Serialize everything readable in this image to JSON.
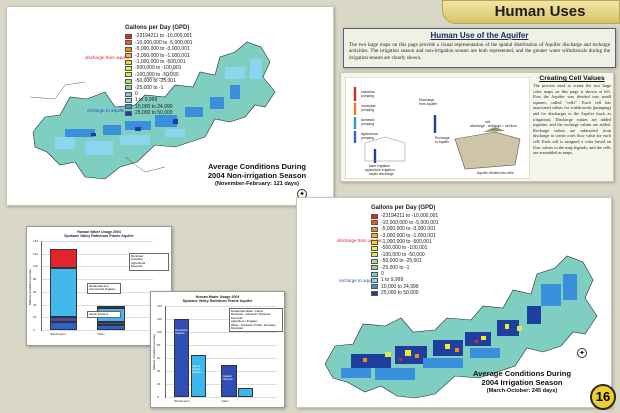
{
  "header": {
    "tab_title": "Human Uses"
  },
  "page_number": "16",
  "legend": {
    "title": "Gallons per Day (GPD)",
    "items": [
      {
        "label": "-23194211 to -10,000,001",
        "color": "#e8231e"
      },
      {
        "label": "-10,000,000 to -5,000,001",
        "color": "#f05a1e"
      },
      {
        "label": "-5,000,000 to -3,000,001",
        "color": "#f48a1c"
      },
      {
        "label": "-3,000,000 to -1,000,001",
        "color": "#f7b21c"
      },
      {
        "label": "-1,000,000 to -500,001",
        "color": "#f8d41e"
      },
      {
        "label": "-500,000 to -100,001",
        "color": "#f5ec2a"
      },
      {
        "label": "-100,000 to -50,000",
        "color": "#d6ec4e"
      },
      {
        "label": "-50,000 to -25,001",
        "color": "#aee06a"
      },
      {
        "label": "-25,000 to -1",
        "color": "#8ed3a6"
      },
      {
        "label": "0",
        "color": "#7ecfc2"
      },
      {
        "label": "1 to 9,999",
        "color": "#8ad6ee"
      },
      {
        "label": "10,000 to 24,999",
        "color": "#3a8fdc"
      },
      {
        "label": "25,000 to 50,000",
        "color": "#1e3f9e"
      }
    ],
    "discharge_label": "discharge from aquifer",
    "recharge_label": "recharge to aquifer"
  },
  "map_nonirrigation": {
    "caption_line1": "Average Conditions During",
    "caption_line2": "2004 Non-irrigation Season",
    "caption_line3": "(November-February: 121 days)"
  },
  "map_irrigation": {
    "caption_line1": "Average Conditions During",
    "caption_line2": "2004 Irrigation Season",
    "caption_line3": "(March-October: 245 days)"
  },
  "intro": {
    "heading": "Human Use of the Aquifer",
    "text": "The two large maps on this page provide a visual representation of the spatial distribution of Aquifer discharge and recharge activities. The irrigation season and non-irrigation season are both represented, and the greater water withdrawals during the irrigation season are clearly shown."
  },
  "cells": {
    "heading": "Creating Cell Values",
    "text": "The process used to create the two large color maps on this page is shown at left. First the Aquifer was divided into small squares, called \"cells\". Each cell has associated values for withdrawals (pumping) and for discharges to the Aquifer (such as irrigation). Discharge values are added together, and the recharge values are added. Recharge values are subtracted from discharge to create a net flow value for each cell. Each cell is assigned a color based on flow values in the map legends, and the cells are assembled as maps."
  },
  "diagram": {
    "labels": [
      "industrial pumping",
      "municipal pumping",
      "domestic pumping",
      "agricultural pumping",
      "Discharge from Aquifer",
      "Recharge to Aquifer",
      "lawn irrigation",
      "agriculture irrigation",
      "septic discharge",
      "cell",
      "cell",
      "discharge - recharge = net flow",
      "Aquifer divided into cells"
    ]
  },
  "chart1": {
    "title_line1": "Human Water Usage 2004",
    "title_line2": "Spokane Valley Rathdrum Prairie Aquifer",
    "categories": [
      "Washington",
      "Idaho"
    ],
    "ylabel": "Millions of Gallons per Day",
    "yticks": [
      "0",
      "20",
      "40",
      "60",
      "80",
      "100",
      "120",
      "140"
    ],
    "legend": [
      "Municipal",
      "Industrial",
      "Agricultural",
      "Domestic"
    ],
    "notes": [
      "Residential and Commercial Irrigation",
      "Septic Systems"
    ]
  },
  "chart2": {
    "title_line1": "Human Water Usage 2004",
    "title_line2": "Spokane Valley Rathdrum Prairie Aquifer",
    "categories": [
      "Washington",
      "Idaho"
    ],
    "ylabel": "Millions of Gallons per Day",
    "yticks": [
      "0",
      "20",
      "40",
      "60",
      "80",
      "100",
      "120",
      "140"
    ],
    "legend": [
      "Residential Water / Indoor",
      "Municipal - Industrial / Business, Domestic",
      "Agriculture / Irrigation",
      "Water - Industrial / Public, Domestic, Municipal"
    ],
    "bar_labels": [
      "Residential Irrigation",
      "Lawn & Garden / Irrigation",
      "Irrigation Industrial",
      "Domestic"
    ]
  },
  "chart_data": [
    {
      "type": "bar",
      "stacked": true,
      "title": "Human Water Usage 2004 Spokane Valley Rathdrum Prairie Aquifer",
      "categories": [
        "Washington",
        "Idaho"
      ],
      "ylabel": "Millions of Gallons per Day",
      "ylim": [
        0,
        140
      ],
      "series": [
        {
          "name": "Municipal",
          "values": [
            12,
            8
          ],
          "color": "#2f5fd0"
        },
        {
          "name": "Industrial",
          "values": [
            8,
            4
          ],
          "color": "#4a4a9e"
        },
        {
          "name": "Agricultural",
          "values": [
            78,
            22
          ],
          "color": "#42b8ec"
        },
        {
          "name": "Domestic",
          "values": [
            30,
            4
          ],
          "color": "#e0262a"
        }
      ]
    },
    {
      "type": "bar",
      "title": "Human Water Usage 2004 Spokane Valley Rathdrum Prairie Aquifer",
      "categories": [
        "Washington",
        "Idaho"
      ],
      "ylabel": "Millions of Gallons per Day",
      "ylim": [
        0,
        140
      ],
      "series": [
        {
          "name": "Residential Water / Indoor",
          "values": [
            120,
            50
          ],
          "color": "#2f4eb5"
        },
        {
          "name": "Agriculture / Irrigation",
          "values": [
            64,
            14
          ],
          "color": "#3ab7ec"
        }
      ]
    }
  ]
}
